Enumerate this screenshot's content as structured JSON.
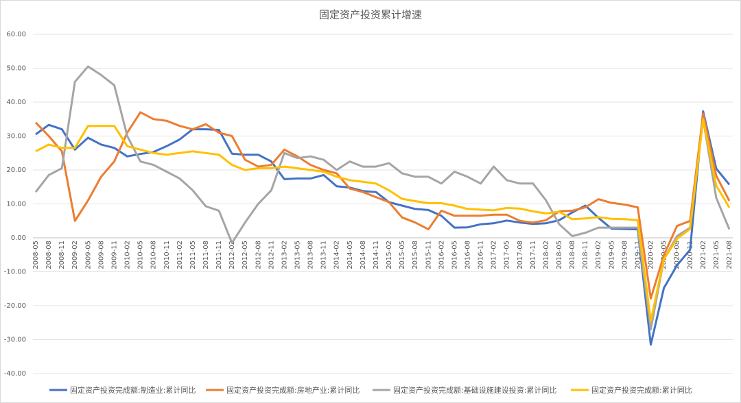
{
  "chart_data": {
    "type": "line",
    "title": "固定资产投资累计增速",
    "categories": [
      "2008-05",
      "2008-08",
      "2008-11",
      "2009-02",
      "2009-05",
      "2009-08",
      "2009-11",
      "2010-02",
      "2010-05",
      "2010-08",
      "2010-11",
      "2011-02",
      "2011-05",
      "2011-08",
      "2011-11",
      "2012-02",
      "2012-05",
      "2012-08",
      "2012-11",
      "2013-02",
      "2013-05",
      "2013-08",
      "2013-11",
      "2014-02",
      "2014-05",
      "2014-08",
      "2014-11",
      "2015-02",
      "2015-05",
      "2015-08",
      "2015-11",
      "2016-02",
      "2016-05",
      "2016-08",
      "2016-11",
      "2017-02",
      "2017-05",
      "2017-08",
      "2017-11",
      "2018-02",
      "2018-05",
      "2018-08",
      "2018-11",
      "2019-02",
      "2019-05",
      "2019-08",
      "2019-11",
      "2020-02",
      "2020-05",
      "2020-08",
      "2020-11",
      "2021-02",
      "2021-05",
      "2021-08"
    ],
    "series": [
      {
        "name": "固定资产投资完成额:制造业:累计同比",
        "color": "#4472c4",
        "values": [
          30.5,
          33.3,
          32.0,
          26,
          29.5,
          27.5,
          26.5,
          24,
          24.7,
          25.3,
          27,
          29,
          32,
          32,
          31.8,
          24.8,
          24.5,
          24.5,
          22.5,
          17.3,
          17.5,
          17.5,
          18.5,
          15.2,
          14.8,
          13.8,
          13.5,
          10.5,
          9.5,
          8.5,
          8.2,
          6.5,
          3.0,
          3.1,
          4.0,
          4.3,
          5.1,
          4.5,
          4.1,
          4.3,
          5.2,
          7.5,
          9.5,
          5.9,
          2.7,
          2.6,
          2.5,
          -31.5,
          -14.8,
          -8.1,
          -3.5,
          37.3,
          20.4,
          15.7
        ]
      },
      {
        "name": "固定资产投资完成额:房地产业:累计同比",
        "color": "#ed7d31",
        "values": [
          34,
          30,
          25.5,
          5,
          11,
          18,
          22.5,
          31,
          37,
          35,
          34.5,
          33,
          32,
          33.5,
          31,
          30,
          23,
          21,
          21.5,
          26,
          24,
          21.5,
          20,
          19,
          14.5,
          13.5,
          12,
          10.5,
          6,
          4.5,
          2.5,
          8,
          6.5,
          6.5,
          6.5,
          6.8,
          6.8,
          5,
          4.5,
          5.2,
          7.8,
          8,
          9,
          11.4,
          10.3,
          9.8,
          9,
          -17.9,
          -5.1,
          3.5,
          5,
          36.6,
          18.3,
          10.9
        ]
      },
      {
        "name": "固定资产投资完成额:基础设施建设投资:累计同比",
        "color": "#a5a5a5",
        "values": [
          13.5,
          18.5,
          20.5,
          46,
          50.5,
          48,
          45,
          30,
          22.5,
          21.5,
          19.5,
          17.5,
          14,
          9.3,
          8,
          -1.5,
          4.5,
          10,
          14,
          25,
          23.5,
          24,
          23,
          20,
          22.5,
          21,
          21,
          22,
          19,
          18,
          18,
          16,
          19.5,
          18,
          16,
          21,
          17,
          16,
          16,
          11,
          4,
          0.5,
          1.5,
          3,
          3,
          3,
          3,
          -27,
          -6.3,
          0.5,
          3,
          35,
          11.8,
          2.5
        ]
      },
      {
        "name": "固定资产投资完成额:累计同比",
        "color": "#ffc000",
        "values": [
          25.5,
          27.5,
          26.5,
          26.5,
          33,
          33,
          33,
          27,
          26,
          25,
          24.5,
          25,
          25.5,
          25,
          24.5,
          21.5,
          20,
          20.5,
          20.5,
          21,
          20.5,
          20,
          19.5,
          18,
          17,
          16.5,
          16,
          14,
          11.5,
          10.8,
          10.2,
          10.2,
          9.5,
          8.5,
          8.3,
          8.1,
          8.8,
          8.6,
          7.8,
          7.2,
          7.7,
          5.5,
          5.7,
          6.1,
          5.6,
          5.5,
          5.2,
          -24.5,
          -6.3,
          -0.3,
          2.6,
          35,
          15.4,
          8.9
        ]
      }
    ],
    "ylim": [
      -40,
      60
    ],
    "yticks": [
      {
        "value": -40,
        "label": "-40.00"
      },
      {
        "value": -30,
        "label": "-30.00"
      },
      {
        "value": -20,
        "label": "-20.00"
      },
      {
        "value": -10,
        "label": "-10.00"
      },
      {
        "value": 0,
        "label": "0.00"
      },
      {
        "value": 10,
        "label": "10.00"
      },
      {
        "value": 20,
        "label": "20.00"
      },
      {
        "value": 30,
        "label": "30.00"
      },
      {
        "value": 40,
        "label": "40.00"
      },
      {
        "value": 50,
        "label": "50.00"
      },
      {
        "value": 60,
        "label": "60.00"
      }
    ],
    "grid": true
  }
}
